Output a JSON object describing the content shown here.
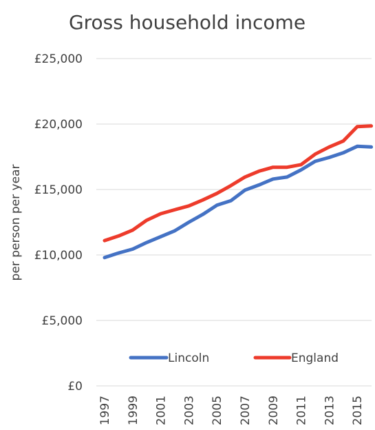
{
  "chart_data": {
    "type": "line",
    "title": "Gross household income",
    "xlabel": "",
    "ylabel": "per person per year",
    "x": [
      1997,
      1998,
      1999,
      2000,
      2001,
      2002,
      2003,
      2004,
      2005,
      2006,
      2007,
      2008,
      2009,
      2010,
      2011,
      2012,
      2013,
      2014,
      2015,
      2016
    ],
    "x_tick_labels": [
      "1997",
      "1999",
      "2001",
      "2003",
      "2005",
      "2007",
      "2009",
      "2011",
      "2013",
      "2015"
    ],
    "x_tick_values": [
      1997,
      1999,
      2001,
      2003,
      2005,
      2007,
      2009,
      2011,
      2013,
      2015
    ],
    "y_ticks": [
      {
        "value": 0,
        "label": "£0"
      },
      {
        "value": 5000,
        "label": "£5,000"
      },
      {
        "value": 10000,
        "label": "£10,000"
      },
      {
        "value": 15000,
        "label": "£15,000"
      },
      {
        "value": 20000,
        "label": "£20,000"
      },
      {
        "value": 25000,
        "label": "£25,000"
      }
    ],
    "ylim": [
      0,
      25000
    ],
    "grid": "horizontal",
    "legend_position": "bottom",
    "series": [
      {
        "name": "Lincoln",
        "color": "#4472c4",
        "values": [
          9800,
          10150,
          10450,
          10950,
          11400,
          11850,
          12500,
          13100,
          13800,
          14150,
          14950,
          15350,
          15800,
          15950,
          16500,
          17150,
          17450,
          17800,
          18300,
          18250
        ]
      },
      {
        "name": "England",
        "color": "#ed3b2b",
        "values": [
          11100,
          11450,
          11900,
          12650,
          13150,
          13450,
          13750,
          14200,
          14700,
          15300,
          15950,
          16400,
          16700,
          16700,
          16900,
          17700,
          18250,
          18700,
          19800,
          19850
        ]
      }
    ]
  }
}
